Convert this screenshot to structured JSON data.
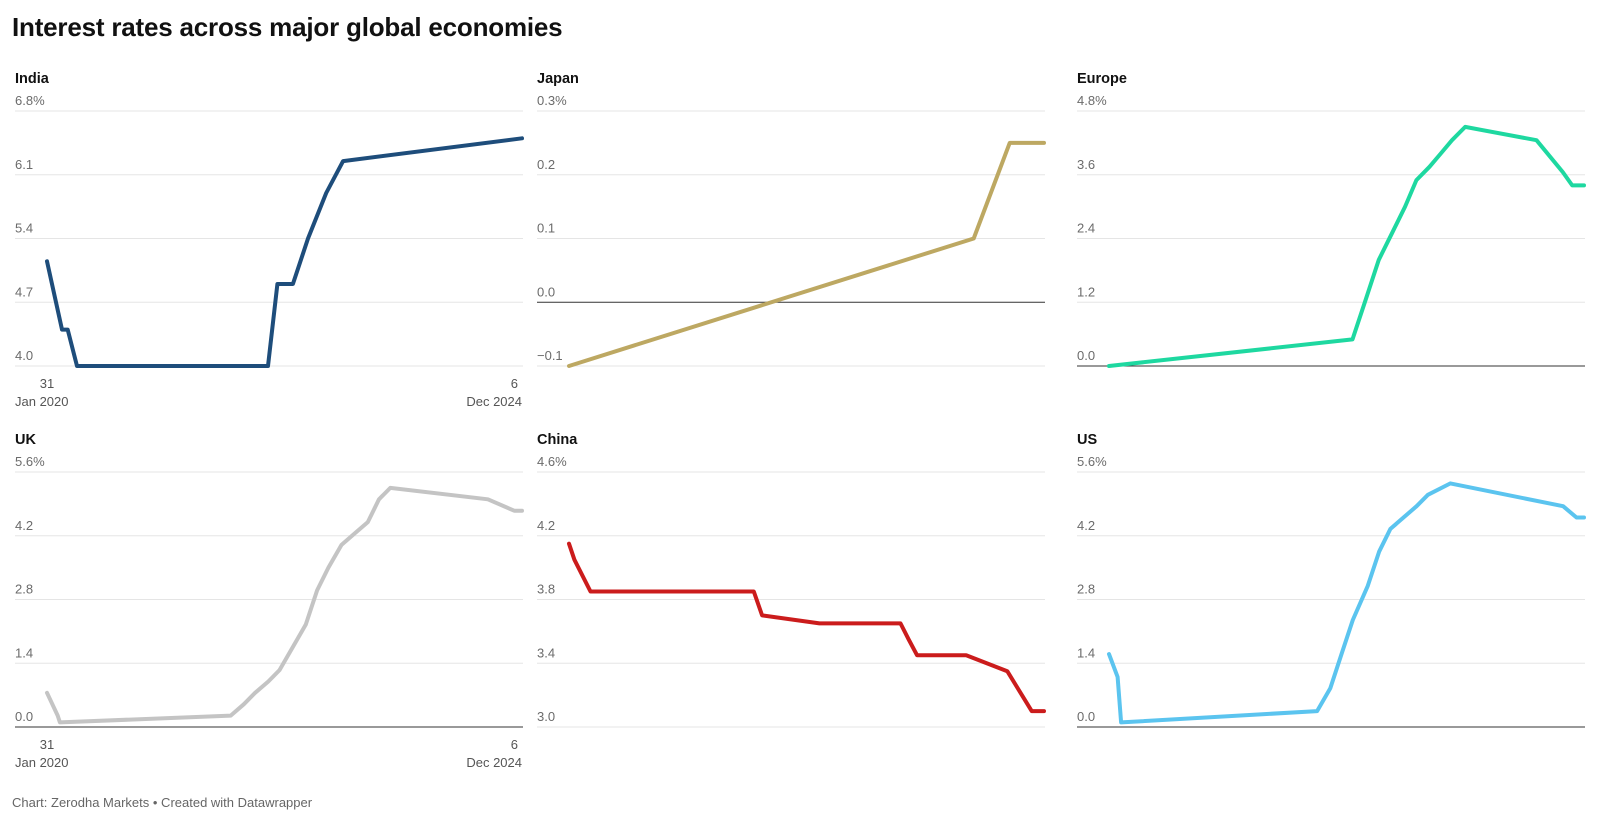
{
  "title": "Interest rates across major global economies",
  "footer": "Chart: Zerodha Markets • Created with Datawrapper",
  "chart_data": [
    {
      "type": "line",
      "title": "India",
      "color": "#1e4d7b",
      "x_start": "2020-01-31",
      "x_end": "2024-12-06",
      "x_start_label": [
        "31",
        "Jan 2020"
      ],
      "x_end_label": [
        "6",
        "Dec 2024"
      ],
      "yticks": [
        4.0,
        4.7,
        5.4,
        6.1,
        6.8
      ],
      "ytick_labels": [
        "4.0",
        "4.7",
        "5.4",
        "6.1",
        "6.8%"
      ],
      "ylim": [
        4.0,
        6.8
      ],
      "baseline": null,
      "x": [
        "2020-01-31",
        "2020-03-27",
        "2020-04-17",
        "2020-05-22",
        "2020-06-15",
        "2022-05-04",
        "2022-06-08",
        "2022-08-05",
        "2022-09-30",
        "2022-12-07",
        "2023-02-08",
        "2024-12-06"
      ],
      "values": [
        5.15,
        4.4,
        4.4,
        4.0,
        4.0,
        4.0,
        4.9,
        4.9,
        5.4,
        5.9,
        6.25,
        6.5
      ],
      "steps": true
    },
    {
      "type": "line",
      "title": "Japan",
      "color": "#bda862",
      "x_start": "2020-01-31",
      "x_end": "2024-12-06",
      "yticks": [
        -0.1,
        0.0,
        0.1,
        0.2,
        0.3
      ],
      "ytick_labels": [
        "−0.1",
        "0.0",
        "0.1",
        "0.2",
        "0.3%"
      ],
      "ylim": [
        -0.1,
        0.3
      ],
      "baseline": 0,
      "x": [
        "2020-01-31",
        "2024-03-19",
        "2024-07-31",
        "2024-12-06"
      ],
      "values": [
        -0.1,
        0.1,
        0.25,
        0.25
      ],
      "steps": false
    },
    {
      "type": "line",
      "title": "Europe",
      "color": "#1ed8a0",
      "x_start": "2020-01-31",
      "x_end": "2024-12-06",
      "yticks": [
        0.0,
        1.2,
        2.4,
        3.6,
        4.8
      ],
      "ytick_labels": [
        "0.0",
        "1.2",
        "2.4",
        "3.6",
        "4.8%"
      ],
      "ylim": [
        0.0,
        4.8
      ],
      "baseline": 0,
      "x": [
        "2020-01-31",
        "2022-07-27",
        "2022-09-14",
        "2022-11-02",
        "2022-12-21",
        "2023-02-08",
        "2023-03-22",
        "2023-05-10",
        "2023-06-21",
        "2023-08-02",
        "2023-09-20",
        "2024-06-12",
        "2024-09-18",
        "2024-10-23",
        "2024-12-06"
      ],
      "values": [
        0.0,
        0.5,
        1.25,
        2.0,
        2.5,
        3.0,
        3.5,
        3.75,
        4.0,
        4.25,
        4.5,
        4.25,
        3.65,
        3.4,
        3.4
      ],
      "steps": true
    },
    {
      "type": "line",
      "title": "UK",
      "color": "#c4c4c4",
      "x_start": "2020-01-31",
      "x_end": "2024-12-06",
      "x_start_label": [
        "31",
        "Jan 2020"
      ],
      "x_end_label": [
        "6",
        "Dec 2024"
      ],
      "yticks": [
        0.0,
        1.4,
        2.8,
        4.2,
        5.6
      ],
      "ytick_labels": [
        "0.0",
        "1.4",
        "2.8",
        "4.2",
        "5.6%"
      ],
      "ylim": [
        0.0,
        5.6
      ],
      "baseline": 0,
      "x": [
        "2020-01-31",
        "2020-03-11",
        "2020-03-19",
        "2021-12-16",
        "2022-02-03",
        "2022-03-17",
        "2022-05-05",
        "2022-06-16",
        "2022-08-04",
        "2022-09-22",
        "2022-11-03",
        "2022-12-15",
        "2023-02-02",
        "2023-03-23",
        "2023-05-11",
        "2023-06-22",
        "2023-08-03",
        "2024-08-01",
        "2024-11-07",
        "2024-12-06"
      ],
      "values": [
        0.75,
        0.25,
        0.1,
        0.25,
        0.5,
        0.75,
        1.0,
        1.25,
        1.75,
        2.25,
        3.0,
        3.5,
        4.0,
        4.25,
        4.5,
        5.0,
        5.25,
        5.0,
        4.75,
        4.75
      ],
      "steps": true
    },
    {
      "type": "line",
      "title": "China",
      "color": "#cb1c1c",
      "x_start": "2020-01-31",
      "x_end": "2024-12-06",
      "yticks": [
        3.0,
        3.4,
        3.8,
        4.2,
        4.6
      ],
      "ytick_labels": [
        "3.0",
        "3.4",
        "3.8",
        "4.2",
        "4.6%"
      ],
      "ylim": [
        3.0,
        4.6
      ],
      "baseline": null,
      "x": [
        "2020-01-31",
        "2020-02-20",
        "2020-04-20",
        "2021-12-20",
        "2022-01-20",
        "2022-08-22",
        "2023-06-20",
        "2023-07-20",
        "2023-08-21",
        "2024-02-20",
        "2024-07-22",
        "2024-10-21",
        "2024-12-06"
      ],
      "values": [
        4.15,
        4.05,
        3.85,
        3.85,
        3.7,
        3.65,
        3.65,
        3.55,
        3.45,
        3.45,
        3.35,
        3.1,
        3.1
      ],
      "steps": true
    },
    {
      "type": "line",
      "title": "US",
      "color": "#5bc4ef",
      "x_start": "2020-01-31",
      "x_end": "2024-12-06",
      "yticks": [
        0.0,
        1.4,
        2.8,
        4.2,
        5.6
      ],
      "ytick_labels": [
        "0.0",
        "1.4",
        "2.8",
        "4.2",
        "5.6%"
      ],
      "ylim": [
        0.0,
        5.6
      ],
      "baseline": 0,
      "x": [
        "2020-01-31",
        "2020-03-03",
        "2020-03-16",
        "2022-03-17",
        "2022-05-05",
        "2022-06-16",
        "2022-07-28",
        "2022-09-22",
        "2022-11-03",
        "2022-12-15",
        "2023-02-02",
        "2023-03-23",
        "2023-05-04",
        "2023-07-27",
        "2024-09-19",
        "2024-11-08",
        "2024-12-06"
      ],
      "values": [
        1.6,
        1.1,
        0.1,
        0.35,
        0.85,
        1.6,
        2.35,
        3.1,
        3.85,
        4.35,
        4.6,
        4.85,
        5.1,
        5.35,
        4.85,
        4.6,
        4.6
      ],
      "steps": true
    }
  ]
}
